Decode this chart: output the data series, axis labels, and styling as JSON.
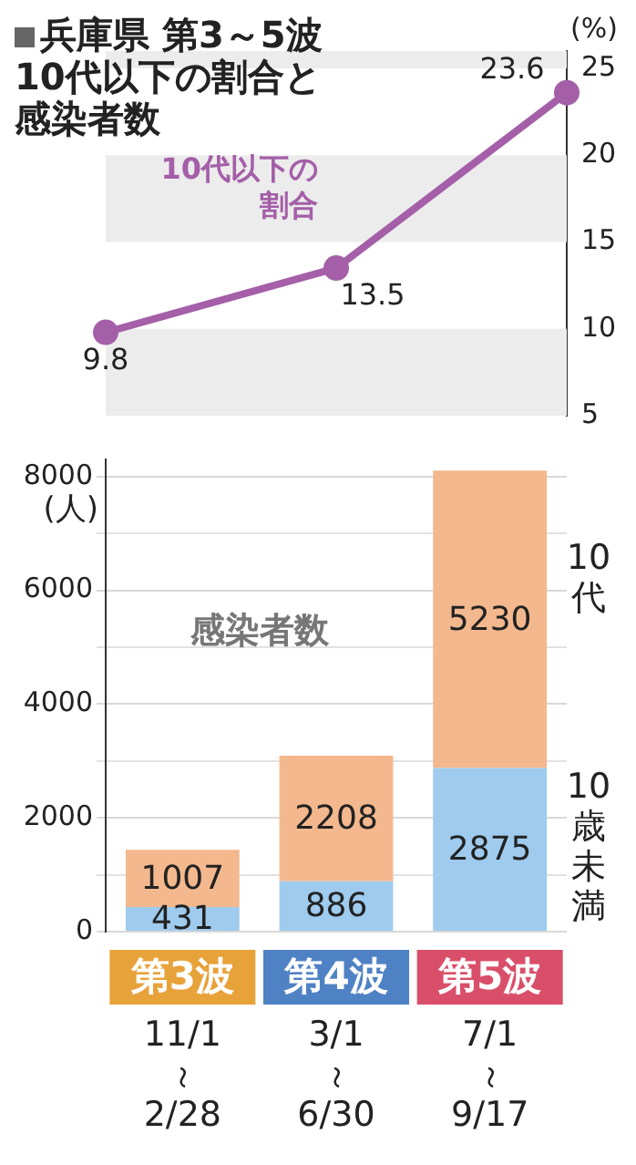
{
  "chart_data": [
    {
      "type": "line",
      "title": "兵庫県 第3～5波10代以下の割合と感染者数",
      "ylabel": "(%)",
      "categories": [
        null,
        null,
        null
      ],
      "series": [
        {
          "name": "10代以下の割合",
          "color": "#a45fa8",
          "values": [
            9.8,
            13.5,
            23.6
          ]
        }
      ],
      "ylim": [
        5,
        26
      ],
      "yticks": [
        5,
        10,
        15,
        20,
        25
      ],
      "tick_labels": "y",
      "data_labels": true,
      "marker": "circle",
      "bands": [
        {
          "axis": "y",
          "from": 5,
          "to": 10,
          "color": "#ececec"
        },
        {
          "axis": "y",
          "from": 15,
          "to": 20,
          "color": "#ececec"
        },
        {
          "axis": "y",
          "from": 25,
          "to": 26,
          "color": "#ececec"
        }
      ]
    },
    {
      "type": "bar",
      "stacked": true,
      "ylabel": "(人)",
      "annotations": [
        "感染者数"
      ],
      "categories": [
        "第3波 11/1～2/28",
        "第4波 3/1～6/30",
        "第5波 7/1～9/17"
      ],
      "series": [
        {
          "name": "10歳未満",
          "color": "#9ecbee",
          "values": [
            431,
            886,
            2875
          ]
        },
        {
          "name": "10代",
          "color": "#f4b88e",
          "values": [
            1007,
            2208,
            5230
          ]
        }
      ],
      "ylim": [
        0,
        8300
      ],
      "yticks": [
        0,
        {
          "value": 1000,
          "label": null
        },
        2000,
        {
          "value": 3000,
          "label": null
        },
        4000,
        {
          "value": 5000,
          "label": null
        },
        6000,
        {
          "value": 7000,
          "label": null
        },
        8000
      ],
      "grid": "y",
      "data_labels": true
    }
  ]
}
